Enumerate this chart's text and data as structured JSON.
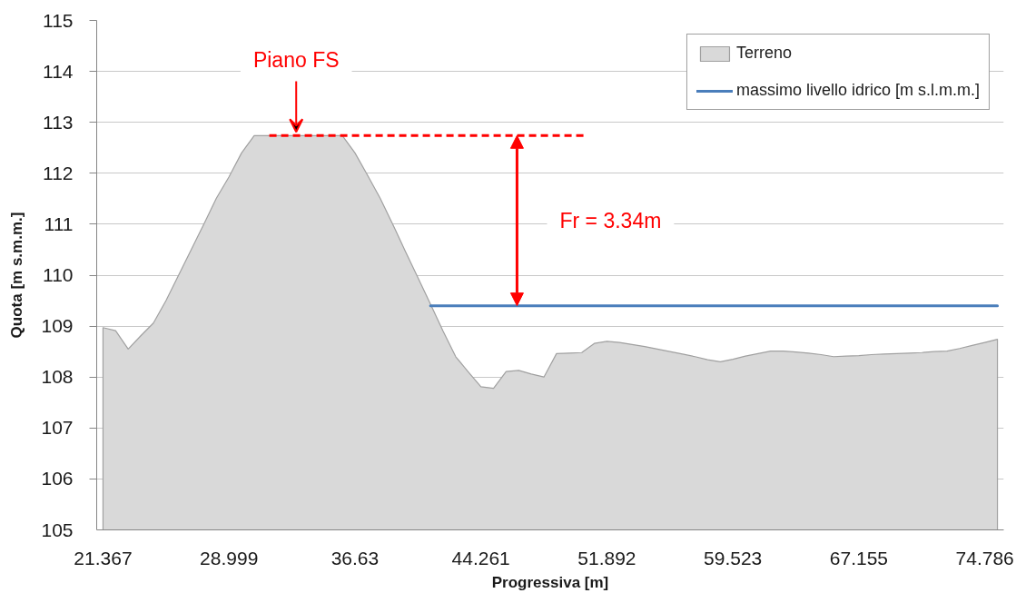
{
  "chart_data": {
    "type": "area",
    "xlabel": "Progressiva [m]",
    "ylabel": "Quota [m s.m.m.]",
    "x": [
      21.367,
      22.13,
      22.893,
      23.656,
      24.42,
      25.183,
      25.946,
      26.709,
      27.472,
      28.235,
      28.999,
      29.762,
      30.525,
      31.288,
      32.051,
      32.814,
      33.577,
      34.34,
      35.103,
      35.866,
      36.63,
      37.393,
      38.156,
      38.919,
      39.682,
      40.445,
      41.208,
      41.971,
      42.734,
      43.497,
      44.261,
      45.024,
      45.787,
      46.55,
      47.313,
      48.076,
      48.839,
      49.602,
      50.365,
      51.128,
      51.892,
      52.655,
      53.418,
      54.181,
      54.944,
      55.707,
      56.47,
      57.233,
      57.996,
      58.759,
      59.523,
      60.286,
      61.049,
      61.812,
      62.575,
      63.338,
      64.101,
      64.864,
      65.627,
      66.392,
      67.155,
      67.918,
      68.681,
      69.444,
      70.207,
      70.97,
      71.733,
      72.496,
      73.26,
      74.023,
      74.786,
      75.549
    ],
    "xlim": [
      20.985,
      75.931
    ],
    "xticks": [
      21.367,
      28.999,
      36.63,
      44.261,
      51.892,
      59.523,
      67.155,
      74.786
    ],
    "ylim": [
      105,
      115
    ],
    "yticks": [
      105,
      106,
      107,
      108,
      109,
      110,
      111,
      112,
      113,
      114,
      115
    ],
    "grid": "y",
    "legend": "top right",
    "series": [
      {
        "name": "Terreno",
        "color": "#d9d9d9",
        "values": [
          108.97,
          108.91,
          108.55,
          108.81,
          109.06,
          109.5,
          110.0,
          110.5,
          111.0,
          111.51,
          111.93,
          112.4,
          112.74,
          112.74,
          112.74,
          112.74,
          112.74,
          112.74,
          112.74,
          112.74,
          112.4,
          111.96,
          111.51,
          111.0,
          110.47,
          109.95,
          109.43,
          108.9,
          108.4,
          108.1,
          107.81,
          107.78,
          108.11,
          108.13,
          108.06,
          108.0,
          108.46,
          108.47,
          108.48,
          108.66,
          108.7,
          108.68,
          108.64,
          108.6,
          108.55,
          108.5,
          108.45,
          108.4,
          108.34,
          108.3,
          108.35,
          108.41,
          108.46,
          108.51,
          108.51,
          108.49,
          108.47,
          108.44,
          108.4,
          108.41,
          108.42,
          108.44,
          108.45,
          108.46,
          108.47,
          108.48,
          108.5,
          108.51,
          108.56,
          108.62,
          108.68,
          108.74
        ]
      },
      {
        "name": "massimo livello idrico [m s.l.m.m.]",
        "type": "line",
        "color": "#4a7ebb",
        "values": [
          null,
          null,
          null,
          null,
          null,
          null,
          null,
          null,
          null,
          null,
          null,
          null,
          null,
          null,
          null,
          null,
          null,
          null,
          null,
          null,
          null,
          null,
          null,
          null,
          null,
          null,
          109.4,
          109.4,
          109.4,
          109.4,
          109.4,
          109.4,
          109.4,
          109.4,
          109.4,
          109.4,
          109.4,
          109.4,
          109.4,
          109.4,
          109.4,
          109.4,
          109.4,
          109.4,
          109.4,
          109.4,
          109.4,
          109.4,
          109.4,
          109.4,
          109.4,
          109.4,
          109.4,
          109.4,
          109.4,
          109.4,
          109.4,
          109.4,
          109.4,
          109.4,
          109.4,
          109.4,
          109.4,
          109.4,
          109.4,
          109.4,
          109.4,
          109.4,
          109.4,
          109.4,
          109.4,
          109.4
        ]
      },
      {
        "type": "line",
        "x": [
          31.44,
          50.6
        ],
        "values": [
          112.74,
          112.74
        ],
        "color": "#ff0000",
        "line_style": "dashed"
      }
    ],
    "annotations": [
      {
        "text": "Piano FS",
        "x": 33.07,
        "y": 112.74
      },
      "Fr = 3.34m"
    ]
  }
}
